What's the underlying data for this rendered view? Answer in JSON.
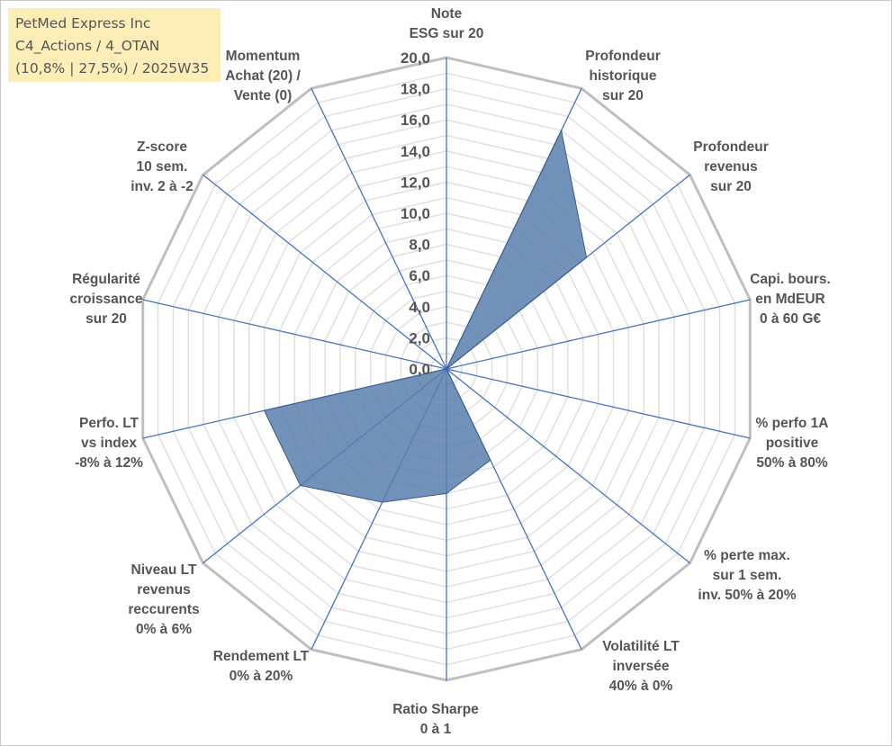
{
  "info_box": {
    "line1": "PetMed Express Inc",
    "line2": "C4_Actions / 4_OTAN",
    "line3": "(10,8% | 27,5%) / 2025W35"
  },
  "colors": {
    "fill": "#5b7fad",
    "edge": "#3a5d8a",
    "spoke": "#4472c4",
    "grid_outer": "#bfbfbf",
    "grid_inner": "#dedede",
    "text": "#555555",
    "info_bg": "#fdeeb8"
  },
  "chart_data": {
    "type": "radar",
    "title": "",
    "range": [
      0,
      20
    ],
    "tick_step": 1,
    "tick_labels": [
      "0,0",
      "2,0",
      "4,0",
      "6,0",
      "8,0",
      "10,0",
      "12,0",
      "14,0",
      "16,0",
      "18,0",
      "20,0"
    ],
    "grid": true,
    "axes": [
      {
        "label": [
          "Note",
          "ESG sur 20"
        ],
        "value": 0
      },
      {
        "label": [
          "Profondeur",
          "historique",
          "sur 20"
        ],
        "value": 17
      },
      {
        "label": [
          "Profondeur",
          "revenus",
          "sur 20"
        ],
        "value": 11.5
      },
      {
        "label": [
          "Capi. bours.",
          "en MdEUR",
          "0 à 60 G€"
        ],
        "value": 0
      },
      {
        "label": [
          "% perfo 1A",
          "positive",
          "50% à 80%"
        ],
        "value": 0
      },
      {
        "label": [
          "% perte max.",
          "sur 1 sem.",
          "inv. 50% à 20%"
        ],
        "value": 0
      },
      {
        "label": [
          "Volatilité LT",
          "inversée",
          "40% à 0%"
        ],
        "value": 6.5
      },
      {
        "label": [
          "Ratio Sharpe",
          "0 à 1"
        ],
        "value": 8
      },
      {
        "label": [
          "Rendement LT",
          "0% à 20%"
        ],
        "value": 9.5
      },
      {
        "label": [
          "Niveau LT",
          "revenus",
          "reccurents",
          "0% à 6%"
        ],
        "value": 12
      },
      {
        "label": [
          "Perfo. LT",
          "vs index",
          "-8% à 12%"
        ],
        "value": 12
      },
      {
        "label": [
          "Régularité",
          "croissance",
          "sur 20"
        ],
        "value": 0
      },
      {
        "label": [
          "Z-score",
          "10 sem.",
          "inv. 2 à -2"
        ],
        "value": 0
      },
      {
        "label": [
          "Momentum",
          "Achat (20) /",
          "Vente (0)"
        ],
        "value": 0
      }
    ]
  }
}
